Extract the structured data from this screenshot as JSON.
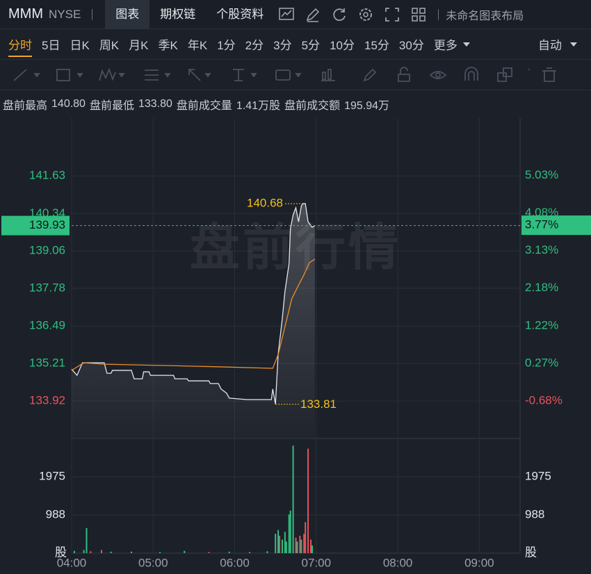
{
  "header": {
    "symbol": "MMM",
    "exchange": "NYSE",
    "tabs": [
      "图表",
      "期权链",
      "个股资料"
    ],
    "layout_name": "未命名图表布局"
  },
  "periods": [
    "分时",
    "5日",
    "日K",
    "周K",
    "月K",
    "季K",
    "年K",
    "1分",
    "2分",
    "3分",
    "5分",
    "10分",
    "15分",
    "30分"
  ],
  "more": "更多",
  "scale_mode": "自动",
  "info": [
    {
      "label": "盘前最高",
      "value": "140.80"
    },
    {
      "label": "盘前最低",
      "value": "133.80"
    },
    {
      "label": "盘前成交量",
      "value": "1.41万股"
    },
    {
      "label": "盘前成交额",
      "value": "195.94万"
    }
  ],
  "chart_data": [
    {
      "type": "line",
      "watermark": "盘前行情",
      "xlim": [
        240,
        570
      ],
      "xticks": [
        {
          "value": 240,
          "label": "04:00"
        },
        {
          "value": 300,
          "label": "05:00"
        },
        {
          "value": 360,
          "label": "06:00"
        },
        {
          "value": 420,
          "label": "07:00"
        },
        {
          "value": 480,
          "label": "08:00"
        },
        {
          "value": 540,
          "label": "09:00"
        }
      ],
      "ylim": [
        132.66,
        143.61
      ],
      "yticks": [
        141.63,
        140.34,
        139.06,
        137.78,
        136.49,
        135.21,
        133.92
      ],
      "y2lim": [
        -1.61,
        6.48
      ],
      "y2ticks": [
        {
          "value": 5.03,
          "label": "5.03%"
        },
        {
          "value": 4.08,
          "label": "4.08%"
        },
        {
          "value": 3.13,
          "label": "3.13%"
        },
        {
          "value": 2.18,
          "label": "2.18%"
        },
        {
          "value": 1.22,
          "label": "1.22%"
        },
        {
          "value": 0.27,
          "label": "0.27%"
        },
        {
          "value": -0.68,
          "label": "-0.68%"
        }
      ],
      "up_color": "#2fbf80",
      "down_color": "#e5545c",
      "grid": true,
      "series": [
        {
          "color": "#e4e6ea",
          "x": [
            240,
            244,
            248,
            264,
            266,
            269,
            270,
            284,
            286,
            292,
            293,
            297,
            298,
            315,
            316,
            325,
            326,
            341,
            342,
            348,
            350,
            354,
            356,
            369,
            387,
            388,
            390,
            392,
            395,
            397,
            400,
            401,
            403,
            405,
            407,
            409,
            410,
            412,
            414,
            417,
            419
          ],
          "values": [
            135.01,
            134.8,
            135.23,
            135.23,
            134.87,
            134.87,
            134.97,
            134.97,
            134.68,
            134.68,
            134.92,
            134.92,
            134.8,
            134.8,
            134.68,
            134.68,
            134.61,
            134.61,
            134.52,
            134.52,
            134.33,
            134.19,
            134.02,
            133.97,
            133.97,
            134.33,
            133.81,
            135.54,
            136.73,
            137.68,
            138.63,
            139.83,
            140.3,
            140.54,
            140.06,
            140.59,
            140.68,
            140.68,
            140.06,
            139.87,
            139.93
          ]
        },
        {
          "color": "#e8902c",
          "x": [
            240,
            249,
            264,
            315,
            350,
            388,
            392,
            397,
            402,
            407,
            411,
            415,
            419
          ],
          "values": [
            134.97,
            135.23,
            135.18,
            135.13,
            135.09,
            135.04,
            135.51,
            136.47,
            137.42,
            137.89,
            138.25,
            138.66,
            138.78
          ]
        }
      ],
      "last": {
        "price": 139.93,
        "change": 3.77,
        "change_label": "3.77%"
      },
      "high": {
        "x": 410,
        "value": 140.68,
        "color": "#f2c21b"
      },
      "low": {
        "x": 390,
        "value": 133.81,
        "color": "#f2c21b"
      }
    },
    {
      "type": "bar",
      "unit_label": "股",
      "xlim": [
        240,
        570
      ],
      "xticks": [
        {
          "value": 240,
          "label": "04:00"
        },
        {
          "value": 300,
          "label": "05:00"
        },
        {
          "value": 360,
          "label": "06:00"
        },
        {
          "value": 420,
          "label": "07:00"
        },
        {
          "value": 480,
          "label": "08:00"
        },
        {
          "value": 540,
          "label": "09:00"
        }
      ],
      "ylim": [
        0,
        2963
      ],
      "yticks": [
        988,
        1975
      ],
      "x": [
        242,
        249,
        251,
        254,
        262,
        269,
        284,
        305,
        323,
        341,
        356,
        371,
        384,
        390,
        392,
        393,
        395,
        397,
        398,
        400,
        401,
        403,
        405,
        406,
        408,
        409,
        411,
        412,
        414,
        416,
        417
      ],
      "values": [
        60,
        80,
        650,
        50,
        80,
        40,
        40,
        30,
        60,
        30,
        40,
        30,
        50,
        500,
        600,
        450,
        350,
        550,
        300,
        1000,
        1100,
        2780,
        400,
        300,
        450,
        350,
        500,
        800,
        2700,
        350,
        200
      ],
      "colors": [
        "#2fbf80",
        "#2fbf80",
        "#2fbf80",
        "#e5545c",
        "#e5545c",
        "#2fbf80",
        "#2fbf80",
        "#2fbf80",
        "#2fbf80",
        "#e5545c",
        "#2fbf80",
        "#2fbf80",
        "#2fbf80",
        "#2fbf80",
        "#2fbf80",
        "#e5545c",
        "#2fbf80",
        "#2fbf80",
        "#2fbf80",
        "#2fbf80",
        "#2fbf80",
        "#2fbf80",
        "#e5545c",
        "#2fbf80",
        "#e5545c",
        "#2fbf80",
        "#e5545c",
        "#e5545c",
        "#e5545c",
        "#e5545c",
        "#2fbf80"
      ]
    }
  ]
}
